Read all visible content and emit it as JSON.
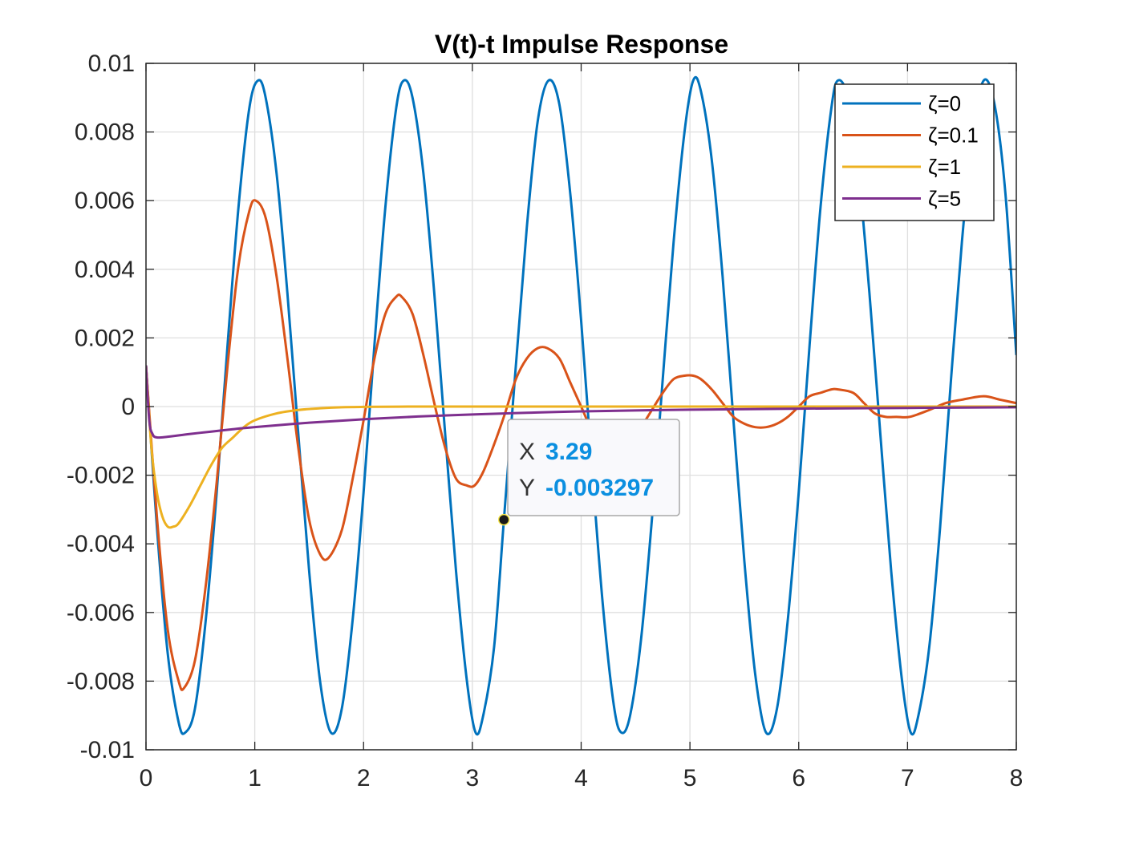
{
  "chart_data": {
    "type": "line",
    "title": "V(t)-t Impulse Response",
    "xlabel": "",
    "ylabel": "",
    "xlim": [
      0,
      8
    ],
    "ylim": [
      -0.01,
      0.01
    ],
    "grid": true,
    "legend_position": "top-right",
    "x_ticks": [
      "0",
      "1",
      "2",
      "3",
      "4",
      "5",
      "6",
      "7",
      "8"
    ],
    "y_ticks": [
      "0.01",
      "0.008",
      "0.006",
      "0.004",
      "0.002",
      "0",
      "-0.002",
      "-0.004",
      "-0.006",
      "-0.008",
      "-0.01"
    ],
    "series": [
      {
        "name": "ζ=0",
        "color": "#0072bd",
        "x": [
          0,
          0.1,
          0.2,
          0.3,
          0.36,
          0.45,
          0.55,
          0.65,
          0.75,
          0.85,
          0.95,
          1.03,
          1.1,
          1.2,
          1.3,
          1.4,
          1.5,
          1.6,
          1.7,
          1.8,
          1.9,
          2.0,
          2.1,
          2.2,
          2.3,
          2.37,
          2.45,
          2.55,
          2.65,
          2.75,
          2.85,
          2.95,
          3.03,
          3.1,
          3.2,
          3.29,
          3.4,
          3.5,
          3.6,
          3.7,
          3.8,
          3.9,
          4.0,
          4.1,
          4.2,
          4.3,
          4.37,
          4.45,
          4.55,
          4.65,
          4.75,
          4.85,
          4.95,
          5.03,
          5.1,
          5.2,
          5.3,
          5.4,
          5.5,
          5.6,
          5.7,
          5.8,
          5.9,
          6.0,
          6.1,
          6.2,
          6.3,
          6.36,
          6.45,
          6.55,
          6.65,
          6.75,
          6.85,
          6.95,
          7.03,
          7.1,
          7.2,
          7.3,
          7.4,
          7.5,
          7.6,
          7.7,
          7.8,
          7.9,
          8.0
        ],
        "y": [
          0.0012,
          -0.0035,
          -0.0072,
          -0.0092,
          -0.0095,
          -0.0088,
          -0.0062,
          -0.0025,
          0.0018,
          0.0058,
          0.0087,
          0.0095,
          0.009,
          0.0068,
          0.0033,
          -0.0008,
          -0.0048,
          -0.008,
          -0.0095,
          -0.0088,
          -0.0062,
          -0.0025,
          0.0018,
          0.0058,
          0.0087,
          0.0095,
          0.009,
          0.0068,
          0.0033,
          -0.0008,
          -0.0048,
          -0.008,
          -0.0095,
          -0.009,
          -0.007,
          -0.003297,
          0.0012,
          0.0052,
          0.0083,
          0.0095,
          0.0088,
          0.0062,
          0.0025,
          -0.0018,
          -0.0058,
          -0.0087,
          -0.0095,
          -0.009,
          -0.0068,
          -0.0033,
          0.0008,
          0.0048,
          0.008,
          0.0095,
          0.0092,
          0.0072,
          0.0038,
          -0.0004,
          -0.0045,
          -0.0078,
          -0.0095,
          -0.0088,
          -0.0062,
          -0.0025,
          0.0018,
          0.0058,
          0.0087,
          0.0095,
          0.009,
          0.0068,
          0.0033,
          -0.0008,
          -0.0048,
          -0.008,
          -0.0095,
          -0.009,
          -0.007,
          -0.0035,
          0.0008,
          0.0048,
          0.008,
          0.0095,
          0.0088,
          0.0062,
          0.0015
        ]
      },
      {
        "name": "ζ=0.1",
        "color": "#d95319",
        "x": [
          0,
          0.1,
          0.2,
          0.3,
          0.35,
          0.45,
          0.55,
          0.65,
          0.75,
          0.85,
          0.95,
          1.01,
          1.1,
          1.2,
          1.3,
          1.4,
          1.5,
          1.6,
          1.68,
          1.8,
          1.9,
          2.0,
          2.1,
          2.2,
          2.3,
          2.35,
          2.45,
          2.55,
          2.65,
          2.75,
          2.85,
          2.95,
          3.02,
          3.1,
          3.2,
          3.3,
          3.4,
          3.5,
          3.6,
          3.69,
          3.8,
          3.9,
          4.0,
          4.1,
          4.2,
          4.3,
          4.36,
          4.45,
          4.55,
          4.65,
          4.75,
          4.85,
          4.95,
          5.03,
          5.1,
          5.2,
          5.3,
          5.4,
          5.5,
          5.6,
          5.7,
          5.8,
          5.9,
          6.0,
          6.1,
          6.2,
          6.3,
          6.36,
          6.5,
          6.6,
          6.7,
          6.8,
          6.9,
          7.02,
          7.2,
          7.35,
          7.5,
          7.7,
          7.85,
          8.0
        ],
        "y": [
          0.0012,
          -0.0032,
          -0.0065,
          -0.008,
          -0.0082,
          -0.0074,
          -0.0052,
          -0.0022,
          0.0012,
          0.0041,
          0.0057,
          0.006,
          0.0055,
          0.0038,
          0.0014,
          -0.0012,
          -0.0033,
          -0.0043,
          -0.0044,
          -0.0036,
          -0.0021,
          -0.0004,
          0.0014,
          0.0027,
          0.0032,
          0.0032,
          0.0027,
          0.0015,
          0.0001,
          -0.0012,
          -0.0021,
          -0.0023,
          -0.0023,
          -0.0019,
          -0.0011,
          -0.0002,
          0.0008,
          0.0014,
          0.0017,
          0.0017,
          0.0014,
          0.0007,
          0.0,
          -0.0007,
          -0.0011,
          -0.0012,
          -0.0012,
          -0.001,
          -0.0006,
          -0.0001,
          0.0004,
          0.0008,
          0.0009,
          0.0009,
          0.0008,
          0.0005,
          0.0001,
          -0.0003,
          -0.0005,
          -0.0006,
          -0.0006,
          -0.0005,
          -0.0003,
          0.0,
          0.0003,
          0.0004,
          0.0005,
          0.0005,
          0.0004,
          0.0001,
          -0.0002,
          -0.0003,
          -0.0003,
          -0.0003,
          -0.0001,
          0.0001,
          0.0002,
          0.0003,
          0.0002,
          0.0001
        ]
      },
      {
        "name": "ζ=1",
        "color": "#edb120",
        "x": [
          0,
          0.05,
          0.1,
          0.15,
          0.2,
          0.25,
          0.3,
          0.4,
          0.5,
          0.6,
          0.7,
          0.8,
          0.9,
          1.0,
          1.2,
          1.4,
          1.6,
          1.8,
          2.0,
          2.5,
          3.0,
          4.0,
          5.0,
          6.0,
          7.0,
          8.0
        ],
        "y": [
          0.0012,
          -0.0012,
          -0.0025,
          -0.0032,
          -0.0035,
          -0.0035,
          -0.0034,
          -0.0029,
          -0.0023,
          -0.0017,
          -0.0012,
          -0.0009,
          -0.0006,
          -0.0004,
          -0.0002,
          -0.0001,
          -5e-05,
          -2e-05,
          -1e-05,
          0,
          0,
          0,
          0,
          0,
          0,
          0
        ]
      },
      {
        "name": "ζ=5",
        "color": "#7e2f8e",
        "x": [
          0,
          0.03,
          0.06,
          0.1,
          0.2,
          0.4,
          0.6,
          0.8,
          1.0,
          1.5,
          2.0,
          2.5,
          3.0,
          3.5,
          4.0,
          5.0,
          6.0,
          7.0,
          8.0
        ],
        "y": [
          0.0012,
          -0.0004,
          -0.0008,
          -0.0009,
          -0.00088,
          -0.0008,
          -0.00073,
          -0.00066,
          -0.0006,
          -0.00047,
          -0.00037,
          -0.00029,
          -0.00023,
          -0.00018,
          -0.00014,
          -9e-05,
          -6e-05,
          -4e-05,
          -2e-05
        ]
      }
    ],
    "datatip": {
      "x": 3.29,
      "y": -0.003297,
      "x_label": "X",
      "y_label": "Y",
      "x_text": "3.29",
      "y_text": "-0.003297"
    }
  }
}
